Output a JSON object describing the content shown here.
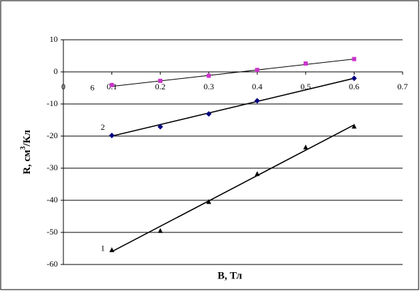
{
  "chart_data": {
    "type": "scatter",
    "x_label": "B, Тл",
    "y_label": {
      "text": "R, см",
      "sup": "3",
      "rest": "/Кл"
    },
    "x": [
      0.1,
      0.2,
      0.3,
      0.4,
      0.5,
      0.6
    ],
    "series": [
      {
        "name": "1",
        "color": "#000000",
        "marker": "triangle",
        "values": [
          -55.5,
          -49.5,
          -40.5,
          -31.8,
          -23.5,
          -17
        ],
        "trend": {
          "x": [
            0.1,
            0.6
          ],
          "values": [
            -56,
            -16.5
          ]
        }
      },
      {
        "name": "2",
        "color": "#000080",
        "marker": "diamond",
        "values": [
          -19.8,
          -17.1,
          -13.1,
          -9.0,
          null,
          -2
        ],
        "trend": {
          "x": [
            0.1,
            0.6
          ],
          "values": [
            -20,
            -2
          ]
        }
      },
      {
        "name": "6",
        "color": "#cc33cc",
        "marker": "square",
        "values": [
          -4.1,
          -2.8,
          -1.2,
          0.6,
          2.6,
          4.0
        ],
        "trend": {
          "x": [
            0.1,
            0.6
          ],
          "values": [
            -4.5,
            4
          ]
        }
      }
    ],
    "xlim": [
      0,
      0.7
    ],
    "ylim": [
      -60,
      10
    ],
    "xticks": [
      0,
      0.1,
      0.2,
      0.3,
      0.4,
      0.5,
      0.6,
      0.7
    ],
    "yticks": [
      10,
      0,
      -10,
      -20,
      -30,
      -40,
      -50,
      -60
    ],
    "grid": true
  }
}
